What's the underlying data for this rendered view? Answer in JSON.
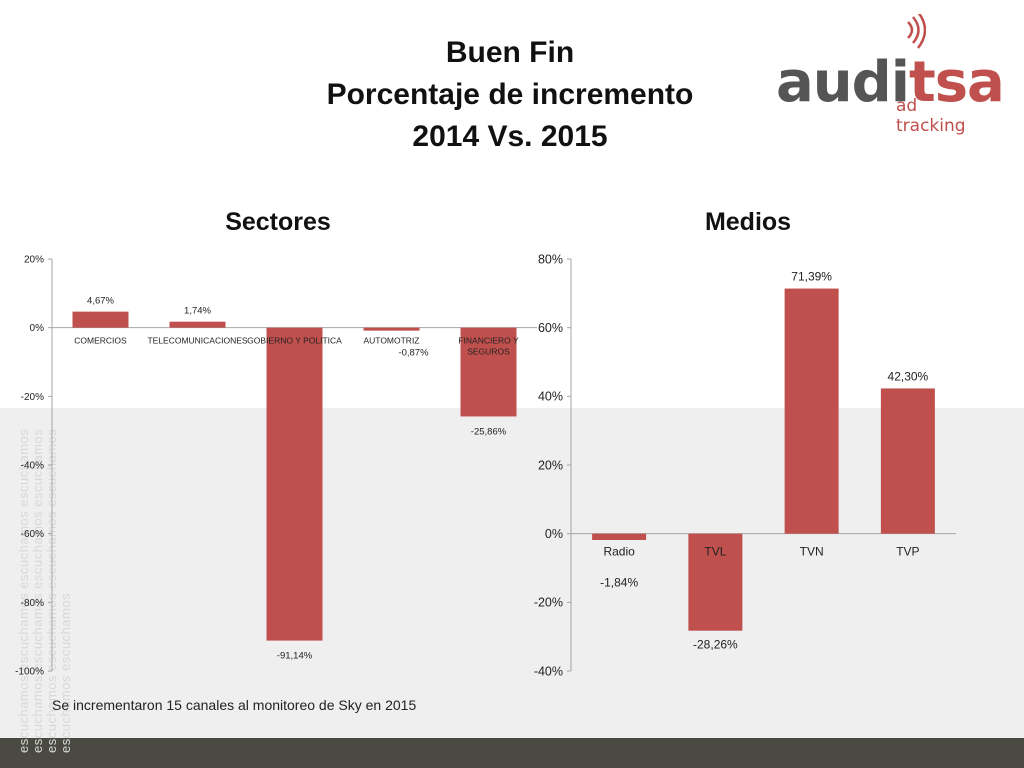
{
  "title": {
    "line1": "Buen Fin",
    "line2": "Porcentaje de incremento",
    "line3": "2014 Vs. 2015"
  },
  "logo": {
    "word_a": "audi",
    "word_b": "tsa",
    "tagline": "ad tracking",
    "color_main": "#555555",
    "color_accent": "#c0504d"
  },
  "watermark_text": "escuchamos escuchamos escuchamos escuchamos escuchamos escuchamos escuchamos escuchamos escuchamos escuchamos escuchamos escuchamos escuchamos escuchamos",
  "note": "Se incrementaron 15 canales al monitoreo de Sky  en 2015",
  "colors": {
    "bar": "#c0504d",
    "axis": "#a6a6a6",
    "band": "#efefef",
    "footer": "#4a4a42"
  },
  "chart_data": [
    {
      "type": "bar",
      "title": "Sectores",
      "xlabel": "",
      "ylabel": "",
      "ylim": [
        -100,
        20
      ],
      "yticks": [
        20,
        0,
        -20,
        -40,
        -60,
        -80,
        -100
      ],
      "ytick_labels": [
        "20%",
        "0%",
        "-20%",
        "-40%",
        "-60%",
        "-80%",
        "-100%"
      ],
      "categories": [
        "COMERCIOS",
        "TELECOMUNICACIONES",
        "GOBIERNO Y POLITICA",
        "AUTOMOTRIZ",
        "FINANCIERO Y SEGUROS"
      ],
      "values": [
        4.67,
        1.74,
        -91.14,
        -0.87,
        -25.86
      ],
      "data_labels": [
        "4,67%",
        "1,74%",
        "-91,14%",
        "-0,87%",
        "-25,86%"
      ],
      "grid": false,
      "legend": "none"
    },
    {
      "type": "bar",
      "title": "Medios",
      "xlabel": "",
      "ylabel": "",
      "ylim": [
        -40,
        80
      ],
      "yticks": [
        80,
        60,
        40,
        20,
        0,
        -20,
        -40
      ],
      "ytick_labels": [
        "80%",
        "60%",
        "40%",
        "20%",
        "0%",
        "-20%",
        "-40%"
      ],
      "categories": [
        "Radio",
        "TVL",
        "TVN",
        "TVP"
      ],
      "values": [
        -1.84,
        -28.26,
        71.39,
        42.3
      ],
      "data_labels": [
        "-1,84%",
        "-28,26%",
        "71,39%",
        "42,30%"
      ],
      "grid": false,
      "legend": "none"
    }
  ]
}
